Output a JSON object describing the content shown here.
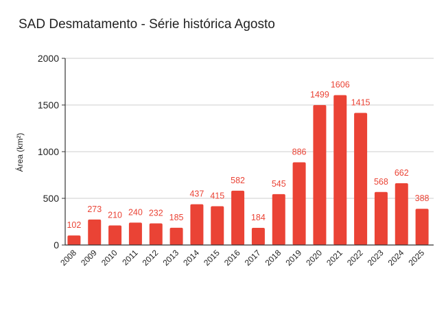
{
  "chart_data": {
    "type": "bar",
    "title": "SAD Desmatamento - Série histórica Agosto",
    "xlabel": "",
    "ylabel": "Área (km²)",
    "ylim": [
      0,
      2000
    ],
    "yticks": [
      "0",
      "500",
      "1000",
      "1500",
      "2000"
    ],
    "grid": true,
    "legend": "none",
    "bar_color": "#ea4335",
    "categories": [
      "2008",
      "2009",
      "2010",
      "2011",
      "2012",
      "2013",
      "2014",
      "2015",
      "2016",
      "2017",
      "2018",
      "2019",
      "2020",
      "2021",
      "2022",
      "2023",
      "2024",
      "2025"
    ],
    "values": [
      102,
      273,
      210,
      240,
      232,
      185,
      437,
      415,
      582,
      184,
      545,
      886,
      1499,
      1606,
      1415,
      568,
      662,
      388
    ]
  }
}
